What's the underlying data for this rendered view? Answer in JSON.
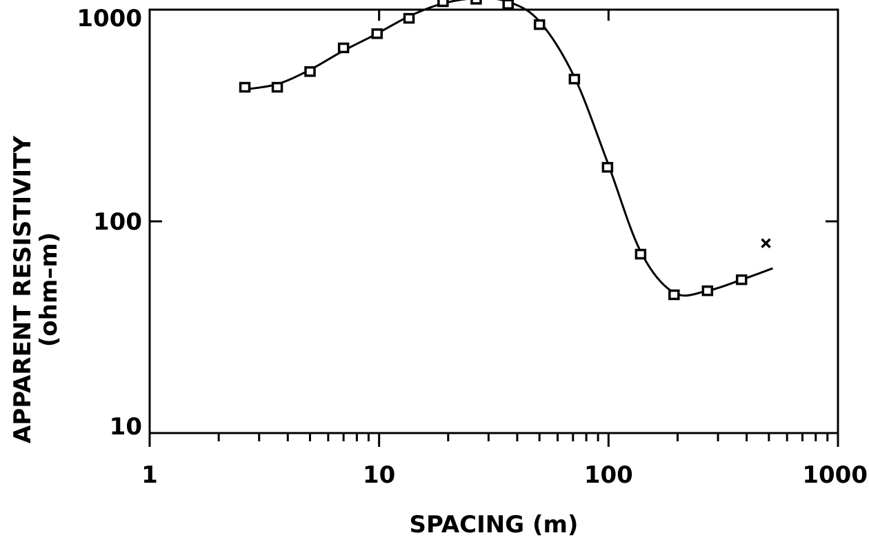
{
  "chart_data": {
    "type": "line",
    "x_scale": "log",
    "y_scale": "log",
    "xlim": [
      1,
      1000
    ],
    "ylim": [
      10,
      1000
    ],
    "xlabel": "SPACING (m)",
    "ylabel_line1": "APPARENT RESISTIVITY",
    "ylabel_line2": "(ohm–m)",
    "x_tick_labels": [
      {
        "value": 1,
        "label": "1"
      },
      {
        "value": 10,
        "label": "10"
      },
      {
        "value": 100,
        "label": "100"
      },
      {
        "value": 1000,
        "label": "1000"
      }
    ],
    "y_tick_labels": [
      {
        "value": 10,
        "label": "10"
      },
      {
        "value": 100,
        "label": "100"
      },
      {
        "value": 1000,
        "label": "1000"
      }
    ],
    "grid": false,
    "series": [
      {
        "marker": "square",
        "x": [
          2.6,
          3.6,
          5,
          7,
          9.8,
          13.5,
          19,
          26.5,
          36.5,
          50,
          71,
          99,
          138,
          193,
          270,
          380
        ],
        "y": [
          430,
          430,
          510,
          660,
          770,
          910,
          1090,
          1120,
          1060,
          850,
          470,
          180,
          70,
          45,
          47,
          53
        ]
      },
      {
        "marker": "line",
        "x": [
          2.6,
          3.6,
          5,
          7,
          9.8,
          13.5,
          19,
          26.5,
          36.5,
          50,
          71,
          99,
          138,
          193,
          270,
          380,
          520
        ],
        "y": [
          420,
          445,
          520,
          640,
          770,
          930,
          1070,
          1130,
          1090,
          880,
          480,
          190,
          72,
          46,
          47,
          53,
          60
        ]
      },
      {
        "marker": "x",
        "x": [
          520
        ],
        "y": [
          72
        ]
      }
    ]
  }
}
